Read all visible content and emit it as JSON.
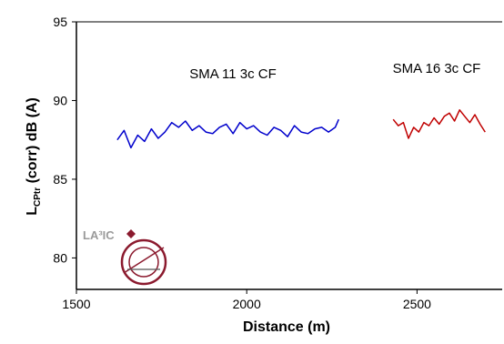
{
  "chart_data": {
    "type": "line",
    "xlabel": "Distance (m)",
    "ylabel_main": "L",
    "ylabel_sub": "CPtr",
    "ylabel_rest": " (corr) dB (A)",
    "xlim": [
      1500,
      2750
    ],
    "ylim": [
      78,
      95
    ],
    "x_ticks": [
      1500,
      2000,
      2500
    ],
    "y_ticks": [
      80,
      85,
      90,
      95
    ],
    "grid": false,
    "series": [
      {
        "name": "SMA 11 3c CF",
        "color": "#0000cc",
        "x": [
          1620,
          1640,
          1660,
          1680,
          1700,
          1720,
          1740,
          1760,
          1780,
          1800,
          1820,
          1840,
          1860,
          1880,
          1900,
          1920,
          1940,
          1960,
          1980,
          2000,
          2020,
          2040,
          2060,
          2080,
          2100,
          2120,
          2140,
          2160,
          2180,
          2200,
          2220,
          2240,
          2260,
          2270
        ],
        "y": [
          87.5,
          88.1,
          87.0,
          87.8,
          87.4,
          88.2,
          87.6,
          88.0,
          88.6,
          88.3,
          88.7,
          88.1,
          88.4,
          88.0,
          87.9,
          88.3,
          88.5,
          87.9,
          88.6,
          88.2,
          88.4,
          88.0,
          87.8,
          88.3,
          88.1,
          87.7,
          88.4,
          88.0,
          87.9,
          88.2,
          88.3,
          88.0,
          88.3,
          88.8
        ]
      },
      {
        "name": "SMA 16 3c CF",
        "color": "#c00000",
        "x": [
          2430,
          2445,
          2460,
          2475,
          2490,
          2505,
          2520,
          2535,
          2550,
          2565,
          2580,
          2595,
          2610,
          2625,
          2640,
          2655,
          2670,
          2685,
          2700
        ],
        "y": [
          88.8,
          88.4,
          88.6,
          87.6,
          88.3,
          88.0,
          88.6,
          88.4,
          88.9,
          88.5,
          89.0,
          89.2,
          88.7,
          89.4,
          89.0,
          88.6,
          89.1,
          88.5,
          88.0
        ]
      }
    ]
  },
  "logo": {
    "text": "LA³IC"
  }
}
